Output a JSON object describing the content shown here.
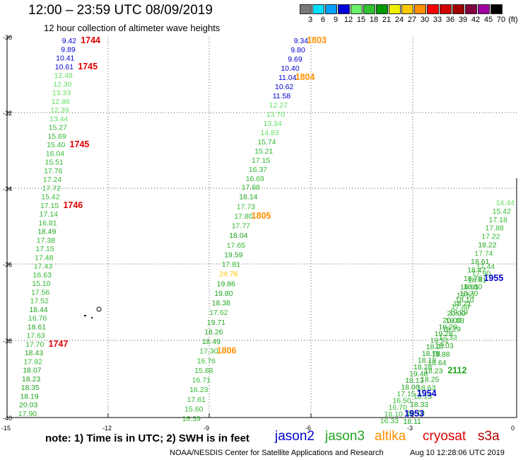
{
  "title": "12:00 – 23:59 UTC 08/09/2019",
  "subtitle": "12 hour collection of altimeter wave heights",
  "scale": {
    "unit": "(ft)",
    "bins": [
      {
        "label": "3",
        "color": "#7a7a7a"
      },
      {
        "label": "6",
        "color": "#00e0ff"
      },
      {
        "label": "9",
        "color": "#00a0ff"
      },
      {
        "label": "12",
        "color": "#0000d8"
      },
      {
        "label": "15",
        "color": "#6aef6a"
      },
      {
        "label": "18",
        "color": "#30c030"
      },
      {
        "label": "21",
        "color": "#009a00"
      },
      {
        "label": "24",
        "color": "#f0f000"
      },
      {
        "label": "27",
        "color": "#ffc800"
      },
      {
        "label": "30",
        "color": "#ff9000"
      },
      {
        "label": "33",
        "color": "#ff0000"
      },
      {
        "label": "36",
        "color": "#d00000"
      },
      {
        "label": "39",
        "color": "#a00000"
      },
      {
        "label": "42",
        "color": "#800040"
      },
      {
        "label": "45",
        "color": "#a000a0"
      },
      {
        "label": "70",
        "color": "#000000"
      }
    ]
  },
  "axes": {
    "lat_labels": [
      "-30",
      "-32",
      "-34",
      "-36",
      "-38",
      "-40"
    ],
    "lon_labels": [
      "-15",
      "-12",
      "-9",
      "-6",
      "-3",
      "0"
    ]
  },
  "palette": {
    "jason2": "#0000d0",
    "jason3": "#1fa51f",
    "altika": "#ff9000",
    "cryosat": "#e00000",
    "s3a": "#b00000",
    "light_green": "#66e066",
    "mid_green": "#33b833",
    "grid": "#555555",
    "coast": "#000000"
  },
  "tracks": [
    {
      "id": "track_west",
      "values": [
        "9.42",
        "9.89",
        "10.41",
        "10.61",
        "12.48",
        "12.30",
        "13.33",
        "12.86",
        "12.39",
        "13.44",
        "15.27",
        "15.69",
        "15.40",
        "16.04",
        "15.51",
        "17.76",
        "17.24",
        "17.72",
        "15.42",
        "17.15",
        "17.14",
        "16.81",
        "18.49",
        "17.38",
        "17.15",
        "17.48",
        "17.43",
        "16.63",
        "15.10",
        "17.56",
        "17.52",
        "18.44",
        "16.76",
        "18.61",
        "17.63",
        "17.70",
        "18.43",
        "17.92",
        "18.07",
        "18.23",
        "18.35",
        "18.19",
        "20.03",
        "17.90"
      ],
      "timestamps": [
        {
          "label": "1744",
          "row": 0,
          "sat": "cryosat"
        },
        {
          "label": "1745",
          "row": 3,
          "sat": "cryosat"
        },
        {
          "label": "1745",
          "row": 12,
          "sat": "cryosat"
        },
        {
          "label": "1746",
          "row": 19,
          "sat": "cryosat"
        },
        {
          "label": "1747",
          "row": 35,
          "sat": "cryosat"
        }
      ]
    },
    {
      "id": "track_mid",
      "values": [
        "17.88",
        "18.14",
        "17.73",
        "17.80",
        "17.77",
        "18.04",
        "17.65",
        "19.59",
        "17.81",
        "24.78",
        "19.86",
        "19.80",
        "18.38",
        "17.62",
        "19.71",
        "18.26",
        "18.49",
        "17.30",
        "16.76",
        "15.88",
        "16.71",
        "16.23",
        "17.61",
        "15.60",
        "16.39"
      ],
      "timestamps": [
        {
          "label": "1805",
          "row": 3,
          "sat": "altika"
        },
        {
          "label": "1806",
          "row": 17,
          "sat": "altika"
        }
      ]
    },
    {
      "id": "track_upper",
      "values": [
        "9.34",
        "9.80",
        "9.69",
        "10.40",
        "11.04",
        "10.62",
        "11.58",
        "12.27",
        "13.70",
        "13.34",
        "14.83",
        "15.74",
        "15.21",
        "17.15",
        "16.37",
        "16.69"
      ],
      "timestamps": [
        {
          "label": "1803",
          "row": 0,
          "sat": "altika"
        },
        {
          "label": "1804",
          "row": 4,
          "sat": "altika"
        }
      ]
    },
    {
      "id": "track_east_a",
      "values": [
        "14.44",
        "15.42",
        "17.18",
        "17.88",
        "17.22",
        "18.22",
        "17.74",
        "18.61",
        "18.47",
        "18.79",
        "18.81",
        "19.51",
        "18.71",
        "19.29",
        "19.03",
        "18.29",
        "17.33",
        "18.03",
        "18.88",
        "18.64",
        "18.23",
        "18.25",
        "18.63",
        "18.13",
        "18.33",
        "18.13",
        "18.11"
      ],
      "timestamps": [
        {
          "label": "1955",
          "row": 9,
          "sat": "jason2"
        },
        {
          "label": "2112",
          "row": 20,
          "sat": "jason3"
        }
      ]
    },
    {
      "id": "track_east_b",
      "values": [
        "17.44",
        "17.90",
        "18.61",
        "18.80",
        "18.70",
        "18.10",
        "17.48",
        "20.09",
        "20.00",
        "19.20",
        "19.28",
        "19.51",
        "18.07",
        "18.78",
        "18.18",
        "18.28",
        "19.48",
        "18.13",
        "18.06",
        "17.15",
        "16.50",
        "16.70",
        "16.10",
        "16.33"
      ],
      "timestamps": [
        {
          "label": "1954",
          "row": 19,
          "sat": "jason2"
        },
        {
          "label": "1953",
          "row": 22,
          "sat": "jason2"
        }
      ]
    }
  ],
  "legend": {
    "note": "note: 1) Time is in UTC; 2) SWH is in feet",
    "satellites": [
      {
        "key": "jason2",
        "label": "jason2"
      },
      {
        "key": "jason3",
        "label": "jason3"
      },
      {
        "key": "altika",
        "label": "altika"
      },
      {
        "key": "cryosat",
        "label": "cryosat"
      },
      {
        "key": "s3a",
        "label": "s3a"
      }
    ]
  },
  "credit": "NOAA/NESDIS Center for Satellite Applications and Research",
  "timestamp": "Aug 10 12:28:06 UTC 2019"
}
